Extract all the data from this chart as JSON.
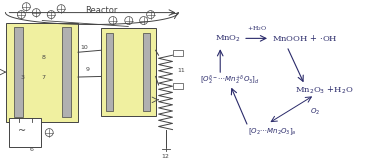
{
  "bg_color": "#ffffff",
  "text_color": "#555555",
  "reactor_label": "Reactor",
  "yellow_color": "#f0f0a0",
  "dark_color": "#444444",
  "light_gray": "#b0b0b0",
  "chem_color": "#2a2a6a",
  "fig_w": 3.78,
  "fig_h": 1.63,
  "dpi": 100
}
